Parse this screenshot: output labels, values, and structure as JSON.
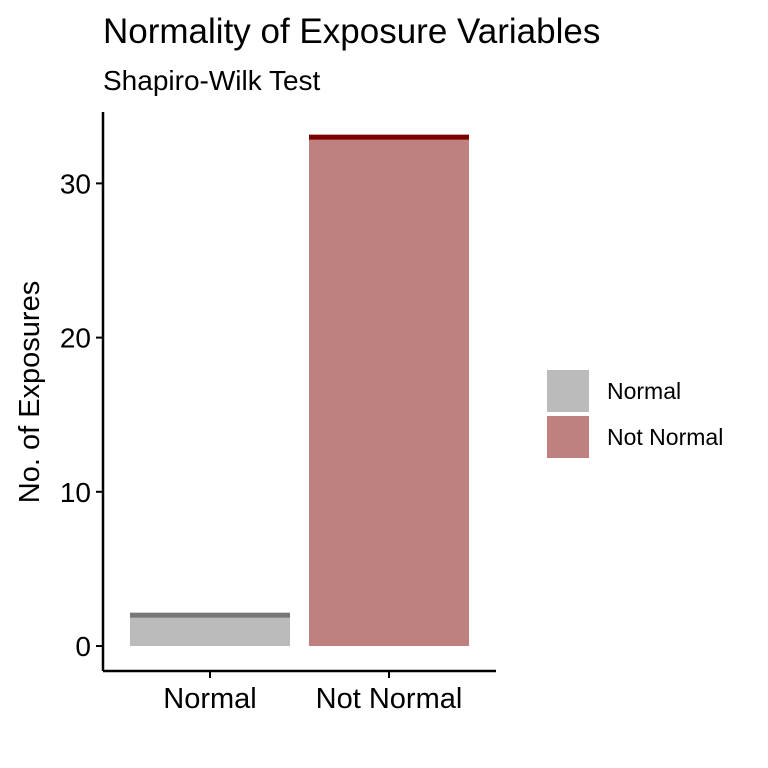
{
  "chart_data": {
    "type": "bar",
    "title": "Normality of Exposure Variables",
    "subtitle": "Shapiro-Wilk Test",
    "xlabel": "",
    "ylabel": "No. of Exposures",
    "categories": [
      "Normal",
      "Not Normal"
    ],
    "values": [
      2,
      33
    ],
    "ylim": [
      0,
      34.5
    ],
    "yticks": [
      0,
      10,
      20,
      30
    ],
    "grid": false,
    "legend": {
      "position": "right",
      "entries": [
        "Normal",
        "Not Normal"
      ]
    },
    "colors": {
      "fill": [
        "#bbbbbb",
        "#bf8080"
      ],
      "top_line": [
        "#777777",
        "#7b0000"
      ]
    }
  }
}
